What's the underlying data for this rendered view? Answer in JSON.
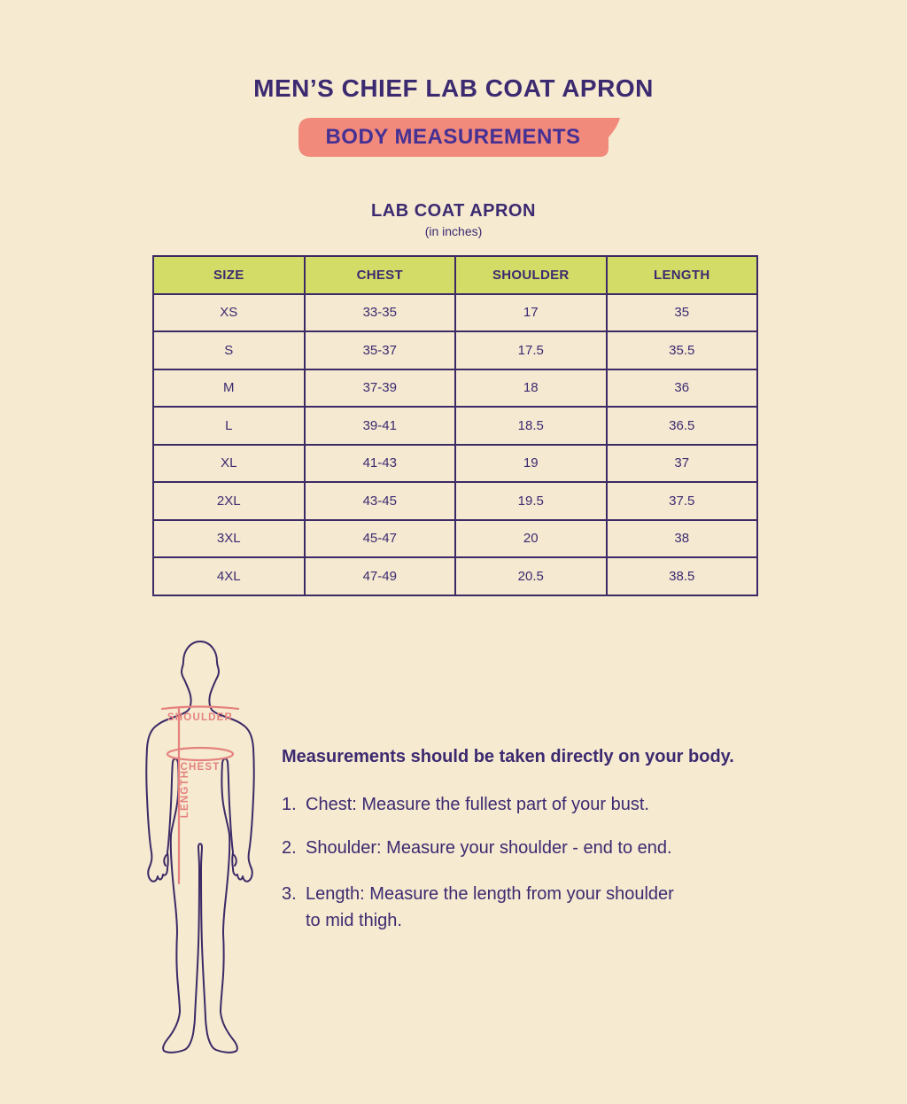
{
  "header": {
    "title": "MEN’S CHIEF LAB COAT APRON",
    "banner": "BODY MEASUREMENTS"
  },
  "table_section": {
    "title": "LAB COAT APRON",
    "unit": "(in inches)"
  },
  "size_table": {
    "columns": [
      "SIZE",
      "CHEST",
      "SHOULDER",
      "LENGTH"
    ],
    "rows": [
      [
        "XS",
        "33-35",
        "17",
        "35"
      ],
      [
        "S",
        "35-37",
        "17.5",
        "35.5"
      ],
      [
        "M",
        "37-39",
        "18",
        "36"
      ],
      [
        "L",
        "39-41",
        "18.5",
        "36.5"
      ],
      [
        "XL",
        "41-43",
        "19",
        "37"
      ],
      [
        "2XL",
        "43-45",
        "19.5",
        "37.5"
      ],
      [
        "3XL",
        "45-47",
        "20",
        "38"
      ],
      [
        "4XL",
        "47-49",
        "20.5",
        "38.5"
      ]
    ]
  },
  "figure": {
    "shoulder_label": "SHOULDER",
    "chest_label": "CHEST",
    "length_label": "LENGTH"
  },
  "instructions": {
    "intro": "Measurements should be taken directly on your body.",
    "items": [
      {
        "marker": "1.",
        "lines": [
          "Chest: Measure the fullest part of your bust."
        ]
      },
      {
        "marker": "2.",
        "lines": [
          "Shoulder: Measure your shoulder - end to end."
        ]
      },
      {
        "marker": "3.",
        "lines": [
          "Length: Measure the length from your shoulder",
          "to mid thigh."
        ]
      }
    ]
  },
  "colors": {
    "background": "#f6ead1",
    "text_purple": "#3c2a70",
    "banner_salmon": "#f18a7b",
    "header_green": "#d3dc66",
    "measure_pink": "#e5827e"
  }
}
